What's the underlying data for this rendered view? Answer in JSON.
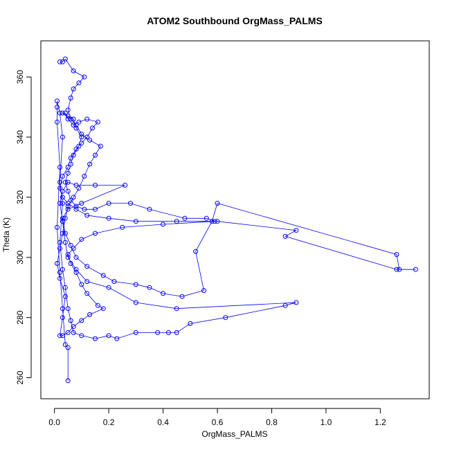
{
  "chart_data": {
    "type": "line",
    "title": "ATOM2 Southbound OrgMass_PALMS",
    "xlabel": "OrgMass_PALMS",
    "ylabel": "Theta (K)",
    "xlim": [
      -0.05,
      1.38
    ],
    "ylim": [
      253,
      372
    ],
    "x_ticks": [
      "0.0",
      "0.2",
      "0.4",
      "0.6",
      "0.8",
      "1.0",
      "1.2"
    ],
    "y_ticks": [
      "260",
      "280",
      "300",
      "320",
      "340",
      "360"
    ],
    "grid": false,
    "series_color": "#0000ff",
    "series": [
      {
        "points": [
          [
            0.05,
            259
          ],
          [
            0.05,
            270
          ],
          [
            0.04,
            271
          ],
          [
            0.03,
            283
          ],
          [
            0.02,
            295
          ],
          [
            0.01,
            310
          ],
          [
            0.02,
            330
          ],
          [
            0.01,
            345
          ],
          [
            0.01,
            350
          ],
          [
            0.01,
            352
          ],
          [
            0.02,
            348
          ],
          [
            0.03,
            340
          ],
          [
            0.02,
            325
          ],
          [
            0.03,
            318
          ],
          [
            0.02,
            305
          ],
          [
            0.03,
            296
          ],
          [
            0.04,
            290
          ],
          [
            0.05,
            283
          ],
          [
            0.06,
            279
          ],
          [
            0.07,
            275
          ],
          [
            0.1,
            274
          ],
          [
            0.15,
            273
          ],
          [
            0.2,
            274
          ],
          [
            0.23,
            273
          ],
          [
            0.3,
            275
          ],
          [
            0.38,
            275
          ],
          [
            0.42,
            275
          ],
          [
            0.45,
            275
          ],
          [
            0.5,
            278
          ],
          [
            0.63,
            280
          ],
          [
            0.85,
            284
          ],
          [
            0.89,
            285
          ],
          [
            0.45,
            283
          ],
          [
            0.3,
            285
          ],
          [
            0.2,
            290
          ],
          [
            0.12,
            292
          ],
          [
            0.08,
            296
          ],
          [
            0.05,
            300
          ],
          [
            0.04,
            305
          ],
          [
            0.03,
            312
          ],
          [
            0.02,
            318
          ],
          [
            0.03,
            322
          ],
          [
            0.05,
            325
          ],
          [
            0.08,
            324
          ],
          [
            0.15,
            324
          ],
          [
            0.26,
            324
          ],
          [
            0.1,
            318
          ],
          [
            0.05,
            316
          ],
          [
            0.03,
            313
          ],
          [
            0.04,
            308
          ],
          [
            0.06,
            304
          ],
          [
            0.08,
            300
          ],
          [
            0.12,
            297
          ],
          [
            0.18,
            294
          ],
          [
            0.22,
            292
          ],
          [
            0.3,
            291
          ],
          [
            0.35,
            290
          ],
          [
            0.4,
            288
          ],
          [
            0.47,
            287
          ],
          [
            0.55,
            289
          ],
          [
            0.52,
            302
          ],
          [
            0.58,
            312
          ],
          [
            0.6,
            318
          ],
          [
            1.26,
            301
          ],
          [
            1.27,
            296
          ],
          [
            1.33,
            296
          ],
          [
            1.26,
            296
          ],
          [
            0.85,
            307
          ],
          [
            0.89,
            309
          ],
          [
            0.6,
            312
          ],
          [
            0.45,
            312
          ],
          [
            0.3,
            312
          ],
          [
            0.2,
            313
          ],
          [
            0.12,
            314
          ],
          [
            0.08,
            316
          ],
          [
            0.05,
            318
          ],
          [
            0.03,
            320
          ],
          [
            0.02,
            323
          ],
          [
            0.03,
            327
          ],
          [
            0.05,
            330
          ],
          [
            0.06,
            333
          ],
          [
            0.08,
            336
          ],
          [
            0.1,
            338
          ],
          [
            0.12,
            340
          ],
          [
            0.14,
            343
          ],
          [
            0.16,
            345
          ],
          [
            0.12,
            346
          ],
          [
            0.09,
            345
          ],
          [
            0.07,
            344
          ],
          [
            0.05,
            346
          ],
          [
            0.04,
            348
          ],
          [
            0.03,
            348
          ],
          [
            0.05,
            347
          ],
          [
            0.07,
            346
          ],
          [
            0.08,
            343
          ],
          [
            0.1,
            340
          ],
          [
            0.09,
            337
          ],
          [
            0.07,
            334
          ],
          [
            0.06,
            331
          ],
          [
            0.05,
            328
          ],
          [
            0.04,
            325
          ],
          [
            0.05,
            322
          ],
          [
            0.06,
            319
          ],
          [
            0.08,
            317
          ],
          [
            0.11,
            316
          ],
          [
            0.15,
            316
          ],
          [
            0.2,
            318
          ],
          [
            0.28,
            318
          ],
          [
            0.35,
            316
          ],
          [
            0.48,
            313
          ],
          [
            0.56,
            313
          ],
          [
            0.59,
            312
          ],
          [
            0.4,
            311
          ],
          [
            0.25,
            310
          ],
          [
            0.15,
            308
          ],
          [
            0.1,
            306
          ],
          [
            0.07,
            303
          ],
          [
            0.05,
            301
          ],
          [
            0.06,
            298
          ],
          [
            0.08,
            295
          ],
          [
            0.1,
            291
          ],
          [
            0.12,
            288
          ],
          [
            0.16,
            284
          ],
          [
            0.18,
            283
          ],
          [
            0.13,
            281
          ],
          [
            0.1,
            279
          ],
          [
            0.07,
            277
          ],
          [
            0.05,
            275
          ],
          [
            0.03,
            274
          ],
          [
            0.02,
            274
          ],
          [
            0.03,
            280
          ],
          [
            0.04,
            287
          ],
          [
            0.02,
            293
          ],
          [
            0.01,
            298
          ],
          [
            0.02,
            303
          ],
          [
            0.03,
            308
          ],
          [
            0.04,
            313
          ],
          [
            0.05,
            317
          ],
          [
            0.07,
            320
          ],
          [
            0.09,
            323
          ],
          [
            0.11,
            327
          ],
          [
            0.13,
            331
          ],
          [
            0.15,
            334
          ],
          [
            0.17,
            337
          ],
          [
            0.13,
            339
          ],
          [
            0.1,
            341
          ],
          [
            0.08,
            344
          ],
          [
            0.06,
            346
          ],
          [
            0.05,
            349
          ],
          [
            0.06,
            353
          ],
          [
            0.07,
            356
          ],
          [
            0.09,
            358
          ],
          [
            0.11,
            360
          ],
          [
            0.07,
            362
          ],
          [
            0.04,
            366
          ],
          [
            0.03,
            365
          ],
          [
            0.02,
            365
          ]
        ]
      }
    ]
  }
}
